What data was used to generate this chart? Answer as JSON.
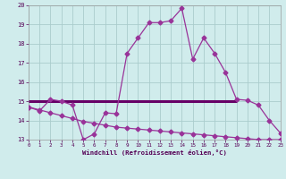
{
  "line1_x": [
    0,
    1,
    2,
    3,
    4,
    5,
    6,
    7,
    8,
    9,
    10,
    11,
    12,
    13,
    14,
    15,
    16,
    17,
    18,
    19,
    20,
    21,
    22,
    23
  ],
  "line1_y": [
    14.7,
    14.5,
    15.1,
    15.0,
    14.8,
    13.0,
    13.3,
    14.4,
    14.35,
    17.5,
    18.3,
    19.1,
    19.1,
    19.2,
    19.85,
    17.2,
    18.3,
    17.5,
    16.5,
    15.1,
    15.05,
    14.8,
    14.0,
    13.35
  ],
  "line2_x": [
    0,
    1,
    2,
    3,
    4,
    5,
    6,
    7,
    8,
    9,
    10,
    11,
    12,
    13,
    14,
    15,
    16,
    17,
    18,
    19,
    20,
    21,
    22,
    23
  ],
  "line2_y": [
    14.7,
    14.55,
    14.4,
    14.25,
    14.1,
    13.95,
    13.85,
    13.75,
    13.65,
    13.6,
    13.55,
    13.5,
    13.45,
    13.4,
    13.35,
    13.3,
    13.25,
    13.2,
    13.15,
    13.1,
    13.05,
    13.0,
    13.0,
    13.0
  ],
  "line3_x": [
    0,
    19
  ],
  "line3_y": [
    15.0,
    15.0
  ],
  "line_color": "#993399",
  "flat_color": "#660066",
  "background_color": "#d0ecec",
  "grid_color": "#aacccc",
  "xlim": [
    0,
    23
  ],
  "ylim": [
    13,
    20
  ],
  "yticks": [
    13,
    14,
    15,
    16,
    17,
    18,
    19,
    20
  ],
  "xticks": [
    0,
    1,
    2,
    3,
    4,
    5,
    6,
    7,
    8,
    9,
    10,
    11,
    12,
    13,
    14,
    15,
    16,
    17,
    18,
    19,
    20,
    21,
    22,
    23
  ],
  "xlabel": "Windchill (Refroidissement éolien,°C)",
  "marker": "D",
  "markersize": 2.5
}
